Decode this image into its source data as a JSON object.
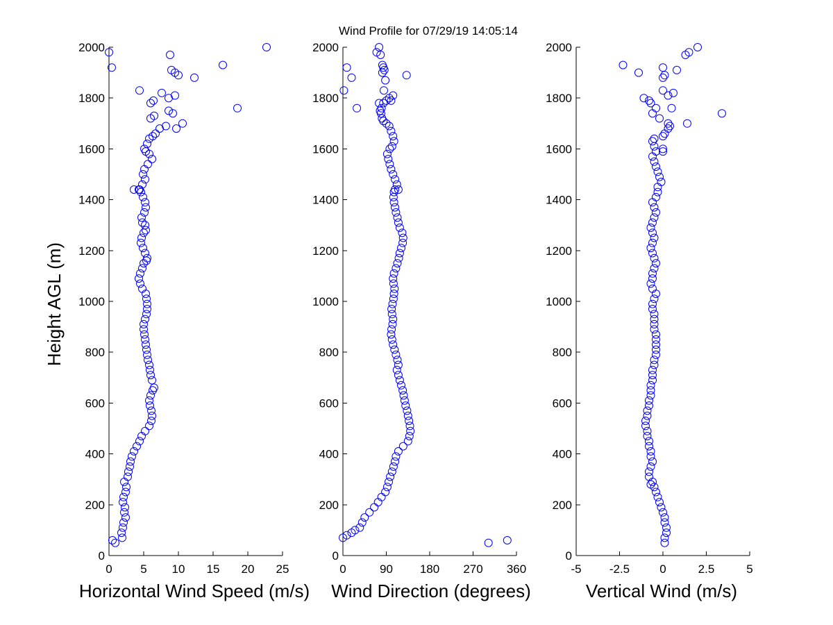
{
  "figure": {
    "title": "Wind Profile for  07/29/19 14:05:14",
    "ylabel": "Height AGL (m)",
    "marker_color": "#0000ff"
  },
  "chart_data": [
    {
      "type": "scatter",
      "xlabel": "Horizontal Wind Speed (m/s)",
      "ylabel": "Height AGL (m)",
      "xlim": [
        0,
        25
      ],
      "ylim": [
        0,
        2000
      ],
      "xticks": [
        "0",
        "5",
        "10",
        "15",
        "20",
        "25"
      ],
      "yticks": [
        "0",
        "200",
        "400",
        "600",
        "800",
        "1000",
        "1200",
        "1400",
        "1600",
        "1800",
        "2000"
      ],
      "grid": false,
      "series": [
        {
          "marker": "circle",
          "x": [
            0.9,
            0.5,
            1.9,
            1.8,
            2.0,
            2.1,
            2.4,
            2.2,
            2.3,
            2.0,
            2.1,
            2.4,
            2.5,
            2.2,
            2.7,
            2.8,
            3.0,
            3.1,
            3.3,
            3.6,
            4.0,
            4.4,
            4.7,
            5.2,
            5.8,
            6.1,
            6.2,
            6.1,
            5.9,
            5.8,
            6.0,
            6.3,
            6.5,
            6.2,
            6.0,
            5.9,
            5.8,
            5.6,
            5.5,
            5.4,
            5.3,
            5.2,
            5.1,
            5.0,
            5.0,
            5.2,
            5.4,
            5.5,
            5.5,
            5.4,
            5.3,
            4.8,
            4.5,
            4.3,
            4.5,
            4.8,
            5.0,
            5.4,
            5.5,
            5.2,
            4.9,
            4.6,
            4.7,
            5.0,
            5.3,
            5.2,
            4.8,
            4.7,
            5.1,
            5.3,
            5.2,
            4.9,
            4.6,
            4.4,
            4.3,
            3.6,
            4.8,
            5.2,
            4.9,
            5.1,
            5.6,
            6.2,
            5.8,
            5.3,
            5.1,
            5.5,
            5.8,
            6.3,
            6.7,
            7.3,
            8.2,
            9.7,
            10.6,
            6.0,
            6.5,
            8.6,
            9.2,
            18.5,
            6.0,
            6.4,
            8.6,
            9.5,
            4.4,
            7.6,
            12.3,
            10.0,
            9.5,
            9.0,
            16.4,
            0.4,
            8.8,
            0.0,
            22.7
          ],
          "y": [
            50,
            60,
            70,
            90,
            110,
            130,
            150,
            170,
            190,
            210,
            230,
            250,
            270,
            290,
            310,
            330,
            350,
            370,
            390,
            410,
            430,
            450,
            470,
            490,
            510,
            530,
            550,
            570,
            590,
            610,
            630,
            650,
            660,
            690,
            710,
            730,
            750,
            770,
            790,
            810,
            830,
            850,
            870,
            890,
            910,
            930,
            950,
            970,
            990,
            1010,
            1030,
            1050,
            1070,
            1090,
            1110,
            1130,
            1150,
            1160,
            1170,
            1190,
            1210,
            1230,
            1250,
            1270,
            1280,
            1300,
            1310,
            1330,
            1350,
            1370,
            1390,
            1410,
            1430,
            1440,
            1440,
            1440,
            1460,
            1480,
            1500,
            1520,
            1540,
            1560,
            1580,
            1590,
            1600,
            1620,
            1640,
            1650,
            1660,
            1680,
            1690,
            1680,
            1700,
            1720,
            1730,
            1750,
            1740,
            1760,
            1780,
            1790,
            1800,
            1810,
            1830,
            1820,
            1880,
            1890,
            1900,
            1910,
            1930,
            1920,
            1970,
            1980,
            2000
          ]
        }
      ]
    },
    {
      "type": "scatter",
      "xlabel": "Wind Direction (degrees)",
      "ylabel": "",
      "xlim": [
        0,
        360
      ],
      "ylim": [
        0,
        2000
      ],
      "xticks": [
        "0",
        "90",
        "180",
        "270",
        "360"
      ],
      "yticks": [
        "0",
        "200",
        "400",
        "600",
        "800",
        "1000",
        "1200",
        "1400",
        "1600",
        "1800",
        "2000"
      ],
      "grid": false,
      "series": [
        {
          "marker": "circle",
          "x": [
            302,
            341,
            0,
            8,
            18,
            25,
            35,
            40,
            45,
            55,
            65,
            73,
            80,
            88,
            92,
            95,
            98,
            102,
            105,
            108,
            110,
            115,
            125,
            135,
            138,
            140,
            139,
            137,
            135,
            133,
            130,
            128,
            126,
            124,
            121,
            118,
            115,
            112,
            115,
            113,
            110,
            107,
            104,
            102,
            100,
            101,
            103,
            104,
            102,
            101,
            103,
            105,
            106,
            107,
            105,
            104,
            106,
            110,
            113,
            116,
            118,
            121,
            124,
            125,
            123,
            118,
            115,
            113,
            110,
            108,
            106,
            105,
            106,
            108,
            115,
            112,
            108,
            104,
            100,
            97,
            94,
            92,
            97,
            102,
            106,
            104,
            100,
            96,
            90,
            84,
            81,
            79,
            77,
            80,
            84,
            90,
            96,
            104,
            2,
            85,
            88,
            18,
            132,
            82,
            86,
            84,
            82,
            78,
            70,
            75,
            8,
            100,
            75,
            29
          ],
          "y": [
            50,
            60,
            70,
            80,
            90,
            100,
            110,
            130,
            150,
            170,
            190,
            210,
            230,
            250,
            270,
            290,
            310,
            330,
            350,
            370,
            390,
            410,
            430,
            450,
            470,
            490,
            510,
            530,
            550,
            570,
            590,
            610,
            630,
            650,
            670,
            690,
            710,
            730,
            750,
            770,
            790,
            810,
            830,
            850,
            870,
            890,
            910,
            930,
            950,
            970,
            990,
            1010,
            1030,
            1050,
            1070,
            1090,
            1110,
            1130,
            1150,
            1170,
            1190,
            1210,
            1230,
            1250,
            1270,
            1290,
            1310,
            1330,
            1350,
            1370,
            1390,
            1410,
            1430,
            1440,
            1440,
            1460,
            1480,
            1500,
            1520,
            1540,
            1560,
            1580,
            1600,
            1610,
            1630,
            1650,
            1670,
            1690,
            1700,
            1710,
            1720,
            1740,
            1750,
            1760,
            1780,
            1790,
            1800,
            1810,
            1830,
            1830,
            1870,
            1880,
            1890,
            1900,
            1910,
            1920,
            1930,
            1970,
            1980,
            2000,
            1920,
            1790,
            1780,
            1760
          ]
        }
      ]
    },
    {
      "type": "scatter",
      "xlabel": "Vertical Wind (m/s)",
      "ylabel": "",
      "xlim": [
        -5,
        5
      ],
      "ylim": [
        0,
        2000
      ],
      "xticks": [
        "-5",
        "-2.5",
        "0",
        "2.5",
        "5"
      ],
      "yticks": [
        "0",
        "200",
        "400",
        "600",
        "800",
        "1000",
        "1200",
        "1400",
        "1600",
        "1800",
        "2000"
      ],
      "grid": false,
      "series": [
        {
          "marker": "circle",
          "x": [
            0.1,
            0.1,
            0.2,
            0.2,
            0.1,
            0.1,
            0.0,
            -0.1,
            -0.2,
            -0.3,
            -0.4,
            -0.5,
            -0.6,
            -0.7,
            -0.8,
            -0.8,
            -0.7,
            -0.6,
            -0.7,
            -0.7,
            -0.8,
            -0.8,
            -0.9,
            -0.9,
            -1.0,
            -1.0,
            -0.9,
            -0.9,
            -0.8,
            -0.8,
            -0.7,
            -0.7,
            -0.7,
            -0.6,
            -0.6,
            -0.6,
            -0.5,
            -0.5,
            -0.4,
            -0.4,
            -0.4,
            -0.4,
            -0.4,
            -0.5,
            -0.5,
            -0.5,
            -0.5,
            -0.6,
            -0.6,
            -0.5,
            -0.4,
            -0.6,
            -0.7,
            -0.6,
            -0.6,
            -0.5,
            -0.4,
            -0.5,
            -0.6,
            -0.7,
            -0.6,
            -0.5,
            -0.6,
            -0.7,
            -0.6,
            -0.5,
            -0.4,
            -0.5,
            -0.6,
            -0.4,
            -0.3,
            -0.3,
            -0.1,
            -0.2,
            -0.3,
            -0.4,
            -0.5,
            -0.6,
            -0.4,
            -0.5,
            -0.6,
            -0.5,
            0.0,
            0.1,
            0.3,
            0.4,
            0.3,
            -0.2,
            -0.6,
            -0.4,
            -0.7,
            -0.8,
            -1.1,
            0.3,
            0.6,
            0.0,
            0.0,
            0.1,
            -1.4,
            0.8,
            0.0,
            -2.3,
            1.3,
            1.5,
            2.0,
            0.5,
            3.4,
            1.4,
            0.0,
            0.0
          ],
          "y": [
            50,
            70,
            90,
            110,
            130,
            150,
            170,
            190,
            210,
            230,
            250,
            270,
            290,
            280,
            310,
            330,
            350,
            370,
            390,
            410,
            430,
            450,
            470,
            490,
            510,
            530,
            550,
            570,
            590,
            610,
            630,
            650,
            670,
            690,
            710,
            730,
            750,
            770,
            790,
            810,
            830,
            850,
            870,
            890,
            910,
            930,
            950,
            970,
            990,
            1010,
            1030,
            1050,
            1070,
            1090,
            1110,
            1130,
            1150,
            1170,
            1190,
            1210,
            1230,
            1250,
            1270,
            1290,
            1310,
            1330,
            1350,
            1370,
            1390,
            1410,
            1430,
            1450,
            1470,
            1490,
            1510,
            1530,
            1550,
            1570,
            1590,
            1610,
            1630,
            1640,
            1650,
            1660,
            1680,
            1690,
            1700,
            1720,
            1740,
            1760,
            1780,
            1790,
            1800,
            1810,
            1820,
            1830,
            1880,
            1890,
            1900,
            1910,
            1920,
            1930,
            1970,
            1980,
            2000,
            1760,
            1740,
            1700,
            1600,
            1590
          ]
        }
      ]
    }
  ]
}
